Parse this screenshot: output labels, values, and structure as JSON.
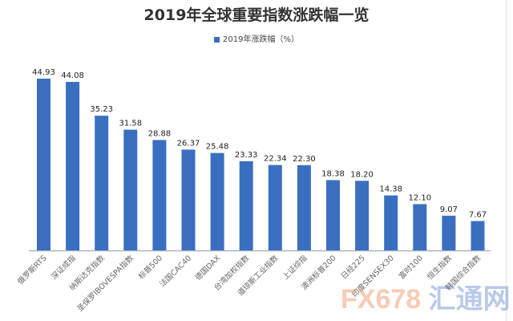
{
  "chart_data": {
    "type": "bar",
    "title": "2019年全球重要指数涨跌幅一览",
    "legend": "2019年涨跌幅（%）",
    "legend_position": "top",
    "color": "#3a6fc0",
    "grid": false,
    "ylim": [
      0,
      47
    ],
    "categories": [
      "俄罗斯RTS",
      "深证成指",
      "纳斯达克指数",
      "圣保罗IBOVESPA指数",
      "标普500",
      "法国CAC40",
      "德国DAX",
      "台湾加权指数",
      "道琼斯工业指数",
      "上证综指",
      "澳洲标普200",
      "日经225",
      "印度SENSEX30",
      "富时100",
      "恒生指数",
      "韩国综合指数"
    ],
    "series": [
      {
        "name": "2019年涨跌幅（%）",
        "values": [
          44.93,
          44.08,
          35.23,
          31.58,
          28.88,
          26.37,
          25.48,
          23.33,
          22.34,
          22.3,
          18.38,
          18.2,
          14.38,
          12.1,
          9.07,
          7.67
        ]
      }
    ]
  },
  "watermark": {
    "brand": "FX678",
    "cn": "汇通网"
  }
}
